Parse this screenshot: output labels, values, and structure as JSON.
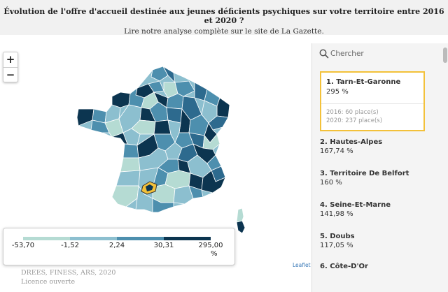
{
  "header": {
    "title": "Évolution de l'offre d'accueil destinée aux jeunes déficients psychiques sur votre territoire entre 2016 et 2020 ?",
    "subtitle": "Lire notre analyse complète sur le site de La Gazette."
  },
  "map": {
    "zoom_in_label": "+",
    "zoom_out_label": "−",
    "highlighted_department": "Tarn-Et-Garonne",
    "attribution": "Leaflet",
    "colors": {
      "class1": "#b5dbd3",
      "class2": "#8cbfcf",
      "class3": "#4d8fae",
      "class4": "#2d6a8e",
      "class5": "#0c3550",
      "highlight": "#f3c13a"
    }
  },
  "legend": {
    "ticks": [
      "-53,70",
      "-1,52",
      "2,24",
      "30,31",
      "295,00"
    ],
    "unit": "%",
    "colors": [
      "#b5dbd3",
      "#8cbfcf",
      "#4d8fae",
      "#0c3550"
    ]
  },
  "source": {
    "line1": "DREES, FINESS, ARS, 2020",
    "line2": "Licence ouverte"
  },
  "panel": {
    "search_placeholder": "Chercher",
    "items": [
      {
        "name": "1. Tarn-Et-Garonne",
        "value": "295 %",
        "detail_2016": "2016: 60 place(s)",
        "detail_2020": "2020: 237 place(s)"
      },
      {
        "name": "2. Hautes-Alpes",
        "value": "167,74 %"
      },
      {
        "name": "3. Territoire De Belfort",
        "value": "160 %"
      },
      {
        "name": "4. Seine-Et-Marne",
        "value": "141,98 %"
      },
      {
        "name": "5. Doubs",
        "value": "117,05 %"
      },
      {
        "name": "6. Côte-D'Or",
        "value": ""
      }
    ]
  }
}
